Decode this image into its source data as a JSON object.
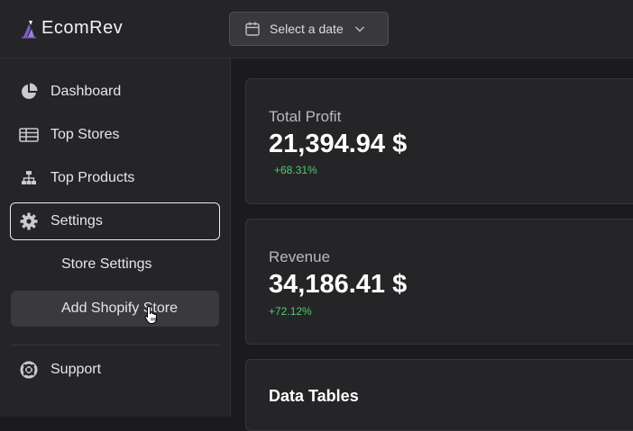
{
  "header": {
    "brand": "EcomRev",
    "date_picker": {
      "label": "Select a date"
    }
  },
  "sidebar": {
    "items": [
      {
        "label": "Dashboard",
        "icon": "pie-chart-icon"
      },
      {
        "label": "Top Stores",
        "icon": "table-icon"
      },
      {
        "label": "Top Products",
        "icon": "hierarchy-icon"
      },
      {
        "label": "Settings",
        "icon": "gear-icon",
        "active": true
      }
    ],
    "sub_items": [
      {
        "label": "Store Settings"
      },
      {
        "label": "Add Shopify Store",
        "hover": true
      }
    ],
    "footer_items": [
      {
        "label": "Support",
        "icon": "lifebuoy-icon"
      }
    ]
  },
  "main": {
    "total_profit": {
      "title": "Total Profit",
      "value": "21,394.94 $",
      "delta": "+68.31%"
    },
    "revenue": {
      "title": "Revenue",
      "value": "34,186.41 $",
      "delta": "+72.12%"
    },
    "data_tables": {
      "title": "Data Tables"
    }
  },
  "colors": {
    "positive": "#4ecb71",
    "background": "#1b1b1d",
    "panel": "#252527",
    "logo_accent": "#7b5cc9"
  }
}
